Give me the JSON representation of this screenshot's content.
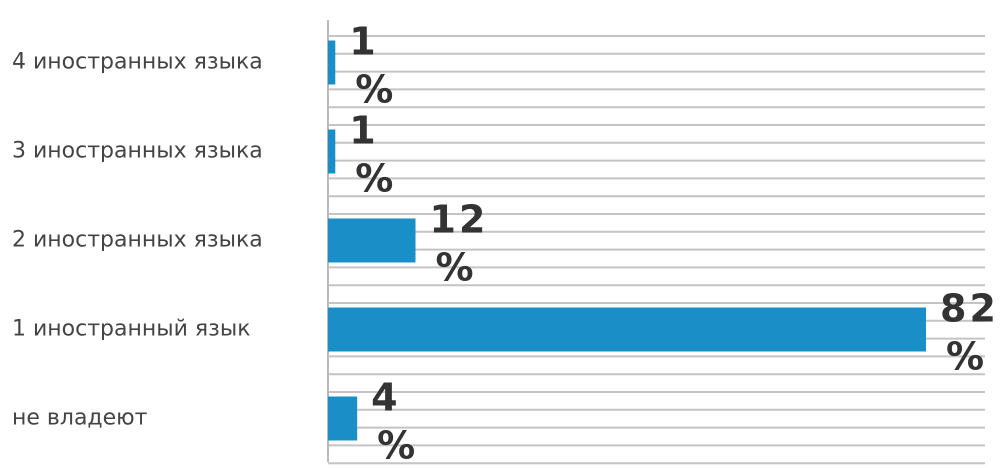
{
  "chart_data": {
    "type": "bar",
    "orientation": "horizontal",
    "categories": [
      "4 иностранных языка",
      "3 иностранных языка",
      "2 иностранных языка",
      "1 иностранный язык",
      "не владеют"
    ],
    "values": [
      1,
      1,
      12,
      82,
      4
    ],
    "value_labels": [
      "1 %",
      "1 %",
      "12 %",
      "82 %",
      "4 %"
    ],
    "color": "#1a8fc7"
  }
}
